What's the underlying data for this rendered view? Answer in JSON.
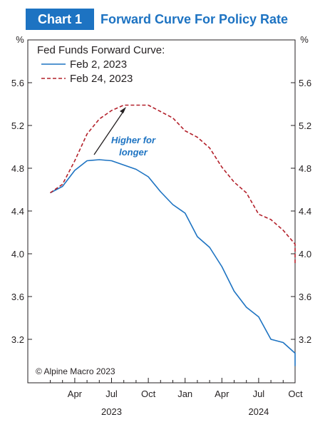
{
  "header": {
    "badge": "Chart 1",
    "title": "Forward Curve For Policy Rate"
  },
  "chart_data": {
    "type": "line",
    "title": "Forward Curve For Policy Rate",
    "y_unit_left": "%",
    "y_unit_right": "%",
    "ylim": [
      2.9,
      5.9
    ],
    "y_ticks": [
      3.2,
      3.6,
      4.0,
      4.4,
      4.8,
      5.2,
      5.6
    ],
    "y_tick_labels": [
      "3.2",
      "3.6",
      "4.0",
      "4.4",
      "4.8",
      "5.2",
      "5.6"
    ],
    "x_tick_labels": [
      "Apr",
      "Jul",
      "Oct",
      "Jan",
      "Apr",
      "Jul",
      "Oct"
    ],
    "x_year_labels": [
      "2023",
      "2024"
    ],
    "legend_title": "Fed Funds Forward Curve:",
    "annotation": [
      "Higher for",
      "longer"
    ],
    "source": "© Alpine Macro 2023",
    "grid": false,
    "series": [
      {
        "name": "Feb 2, 2023",
        "color": "#1d73c2",
        "dash": "solid",
        "x": [
          "2023-02",
          "2023-03",
          "2023-04",
          "2023-05",
          "2023-06",
          "2023-07",
          "2023-08",
          "2023-09",
          "2023-10",
          "2023-11",
          "2023-12",
          "2024-01",
          "2024-02",
          "2024-03",
          "2024-04",
          "2024-05",
          "2024-06",
          "2024-07",
          "2024-08",
          "2024-09",
          "2024-10",
          "2024-11",
          "2024-12",
          "2025-01"
        ],
        "values": [
          4.57,
          4.63,
          4.78,
          4.87,
          4.88,
          4.87,
          4.83,
          4.79,
          4.72,
          4.58,
          4.46,
          4.38,
          4.16,
          4.06,
          3.88,
          3.65,
          3.5,
          3.41,
          3.2,
          3.17,
          3.07,
          2.98,
          2.96,
          2.95
        ]
      },
      {
        "name": "Feb 24, 2023",
        "color": "#b3202a",
        "dash": "dashed",
        "x": [
          "2023-02",
          "2023-03",
          "2023-04",
          "2023-05",
          "2023-06",
          "2023-07",
          "2023-08",
          "2023-09",
          "2023-10",
          "2023-11",
          "2023-12",
          "2024-01",
          "2024-02",
          "2024-03",
          "2024-04",
          "2024-05",
          "2024-06",
          "2024-07",
          "2024-08",
          "2024-09",
          "2024-10",
          "2024-11",
          "2024-12"
        ],
        "values": [
          4.57,
          4.65,
          4.87,
          5.12,
          5.26,
          5.34,
          5.39,
          5.39,
          5.39,
          5.33,
          5.27,
          5.15,
          5.09,
          4.99,
          4.81,
          4.67,
          4.57,
          4.37,
          4.32,
          4.22,
          4.09,
          3.99,
          3.9
        ]
      }
    ]
  }
}
